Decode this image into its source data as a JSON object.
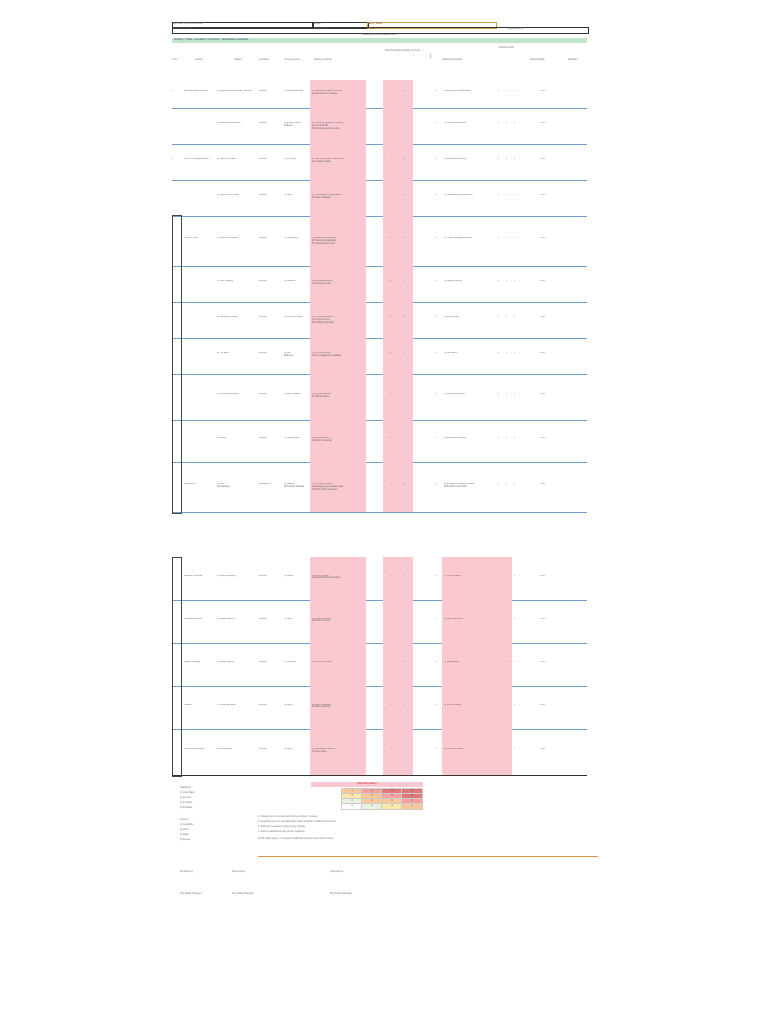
{
  "header": {
    "ref_label": "RA Ref: SMS-F-RA-00",
    "rev_label": "Issue/Rev: 1/0",
    "dept_label": "Dept:",
    "page_label": "Page: 1/1",
    "date_label": "Rev. Date:",
    "site_label": "Site:",
    "approved_label": "Approved by:",
    "title": "Generic Risk Assessment",
    "activity": "Activity / Task / Location / Process : Workplace Activities"
  },
  "columns": {
    "sn": "S.No",
    "activity": "Activity",
    "hazard": "Hazard",
    "condition": "Condition",
    "consequence": "Consequences",
    "controls": "Existing Controls",
    "risk_without": "Risk Evaluation Existing Controls",
    "additional": "Additional Controls",
    "residual": "Residual Risk",
    "responsible": "Responsibility",
    "remarks": "Remarks",
    "sub_l": "L",
    "sub_s": "S",
    "sub_r": "Risk"
  },
  "rows": [
    {
      "sn": "1",
      "activity": "Administrative Activities",
      "hazard": "1) Ergonomics & Manual Handling",
      "cond": "Normal",
      "cons": "1) Musculoskeletal",
      "ctrl": "1) Adjustable chairs provided\n2) Awareness on posture",
      "l": "1",
      "s": "2",
      "r": "2",
      "add": "1) Ergonomic assessment",
      "rl": "1",
      "rs": "2",
      "rr": "2",
      "resp": "HOD"
    },
    {
      "sn": "",
      "activity": "",
      "hazard": "2) Electrical Equipment",
      "cond": "Normal",
      "cons": "1) Electric shock\n2) Burns",
      "ctrl": "1) Periodic inspection of wiring\n2) Use of ELCB\n3) Authorised persons only",
      "l": "1",
      "s": "3",
      "r": "3",
      "add": "1) Periodic inspection",
      "rl": "1",
      "rs": "3",
      "rr": "3",
      "resp": "HOD"
    },
    {
      "sn": "2",
      "activity": "Use of Office Equipment",
      "hazard": "1) Paper Shredder",
      "cond": "Normal",
      "cons": "1) Cut injury",
      "ctrl": "1) Training on use of equipment\n2) Guards in place",
      "l": "1",
      "s": "2",
      "r": "2",
      "add": "1) Awareness training",
      "rl": "1",
      "rs": "2",
      "rr": "2",
      "resp": "HOD"
    },
    {
      "sn": "",
      "activity": "",
      "hazard": "2) Slips trips and falls",
      "cond": "Normal",
      "cons": "1) Injury",
      "ctrl": "1) Housekeeping maintained\n2) Clear walkways",
      "l": "1",
      "s": "2",
      "r": "2",
      "add": "1) Housekeeping inspection",
      "rl": "1",
      "rs": "2",
      "rr": "2",
      "resp": "HOD"
    },
    {
      "sn": "3",
      "activity": "Travel on Site",
      "hazard": "1) Vehicle movement",
      "cond": "Normal",
      "cons": "1) Fatal injury",
      "ctrl": "1) Speed limits enforced\n2) Pedestrian walkways\n3) Trained drivers only",
      "l": "2",
      "s": "4",
      "r": "8",
      "add": "1) Traffic management plan",
      "rl": "1",
      "rs": "4",
      "rr": "4",
      "resp": "HOD"
    },
    {
      "sn": "",
      "activity": "",
      "hazard": "2) Poor visibility",
      "cond": "Normal",
      "cons": "1) Collision",
      "ctrl": "1) Adequate lighting\n2) Reflective vests",
      "l": "2",
      "s": "3",
      "r": "6",
      "add": "1) Lighting survey",
      "rl": "1",
      "rs": "3",
      "rr": "3",
      "resp": "HOD"
    },
    {
      "sn": "",
      "activity": "",
      "hazard": "3) Working at Height",
      "cond": "Normal",
      "cons": "1) Fall from height",
      "ctrl": "1) Full body harness\n2) Permit to work\n3) Scaffold inspection",
      "l": "2",
      "s": "4",
      "r": "8",
      "add": "1) Rescue plan",
      "rl": "1",
      "rs": "4",
      "rr": "4",
      "resp": "HOD"
    },
    {
      "sn": "",
      "activity": "",
      "hazard": "4) Hot work",
      "cond": "Normal",
      "cons": "1) Fire\n2) Burns",
      "ctrl": "1) Hot work permit\n2) Fire extinguisher available",
      "l": "2",
      "s": "3",
      "r": "6",
      "add": "1) Fire watch",
      "rl": "1",
      "rs": "3",
      "rr": "3",
      "resp": "HOD"
    },
    {
      "sn": "",
      "activity": "",
      "hazard": "5) Chemical handling",
      "cond": "Normal",
      "cons": "1) Skin irritation",
      "ctrl": "1) MSDS available\n2) PPE provided",
      "l": "2",
      "s": "3",
      "r": "6",
      "add": "1) Chemical training",
      "rl": "1",
      "rs": "3",
      "rr": "3",
      "resp": "HOD"
    },
    {
      "sn": "",
      "activity": "",
      "hazard": "6) Noise",
      "cond": "Normal",
      "cons": "1) Hearing loss",
      "ctrl": "1) Ear protection\n2) Noise monitoring",
      "l": "2",
      "s": "3",
      "r": "6",
      "add": "1) Audiometric testing",
      "rl": "1",
      "rs": "3",
      "rr": "3",
      "resp": "HOD"
    },
    {
      "sn": "4",
      "activity": "Emergency",
      "hazard": "1) Fire\n2) Explosion",
      "cond": "Emergency",
      "cons": "1) Fatality\n2) Property damage",
      "ctrl": "1) Fire alarm system\n2) Emergency evacuation plan\n3) Mock drills conducted",
      "l": "1",
      "s": "4",
      "r": "4",
      "add": "1) Emergency response team\n2) Periodic mock drills",
      "rl": "1",
      "rs": "4",
      "rr": "4",
      "resp": "HOD"
    },
    {
      "sn": "5",
      "activity": "Canteen Activities",
      "hazard": "1) Food poisoning",
      "cond": "Normal",
      "cons": "1) Illness",
      "ctrl": "1) Food hygiene\n2) Medical check of workers",
      "l": "1",
      "s": "3",
      "r": "3",
      "add": "1) Hygiene audit",
      "rl": "1",
      "rs": "3",
      "rr": "3",
      "resp": "HOD"
    },
    {
      "sn": "6",
      "activity": "Storage Activities",
      "hazard": "1) Falling objects",
      "cond": "Normal",
      "cons": "1) Injury",
      "ctrl": "1) Proper stacking\n2) Racks secured",
      "l": "1",
      "s": "3",
      "r": "3",
      "add": "1) Rack inspection",
      "rl": "1",
      "rs": "3",
      "rr": "3",
      "resp": "HOD"
    },
    {
      "sn": "7",
      "activity": "Waste Handling",
      "hazard": "1) Sharp objects",
      "cond": "Normal",
      "cons": "1) Cut injury",
      "ctrl": "1) Gloves provided",
      "l": "1",
      "s": "2",
      "r": "2",
      "add": "1) Segregation",
      "rl": "1",
      "rs": "2",
      "rr": "2",
      "resp": "HOD"
    },
    {
      "sn": "8",
      "activity": "Visitors",
      "hazard": "1) Unfamiliar area",
      "cond": "Normal",
      "cons": "1) Injury",
      "ctrl": "1) Escort provided\n2) Safety induction",
      "l": "1",
      "s": "3",
      "r": "3",
      "add": "1) Visitor briefing",
      "rl": "1",
      "rs": "3",
      "rr": "3",
      "resp": "HOD"
    },
    {
      "sn": "9",
      "activity": "Contractor activities",
      "hazard": "1) Unsafe acts",
      "cond": "Normal",
      "cons": "1) Injury",
      "ctrl": "1) Contractor induction\n2) Supervision",
      "l": "1",
      "s": "3",
      "r": "3",
      "add": "1) Contractor audit",
      "rl": "1",
      "rs": "3",
      "rr": "3",
      "resp": "HOD"
    }
  ],
  "legend": {
    "likelihood_title": "Likelihood",
    "likelihood": [
      "1) Improbable",
      "2) Remote",
      "3) Possible",
      "4) Probable"
    ],
    "severity_title": "Severity",
    "severity": [
      "1) Negligible",
      "2) Minor",
      "3) Major",
      "4) Severe"
    ],
    "matrix_title": "Risk Rating Matrix",
    "notes": [
      "1. Hazards are to be recorded for the activities / process",
      "2. Residual risk to be identified after implementation of additional controls",
      "3. Risks are reviewed in case of any change",
      "4. Risk is evaluated for all normal conditions",
      "NOTE: Risk rating >= 8 requires additional controls before start of work"
    ]
  },
  "signatures": {
    "prepared": "Prepared by",
    "reviewed": "Reviewed by",
    "approved": "Approved by",
    "name1": "Site Safety Manager",
    "name2": "Site Safety Manager",
    "name3": "Site Project Manager"
  },
  "colors": {
    "pink": "#f9c8d0",
    "line": "#6f9fc9",
    "green_band": "#bfe6c8"
  }
}
